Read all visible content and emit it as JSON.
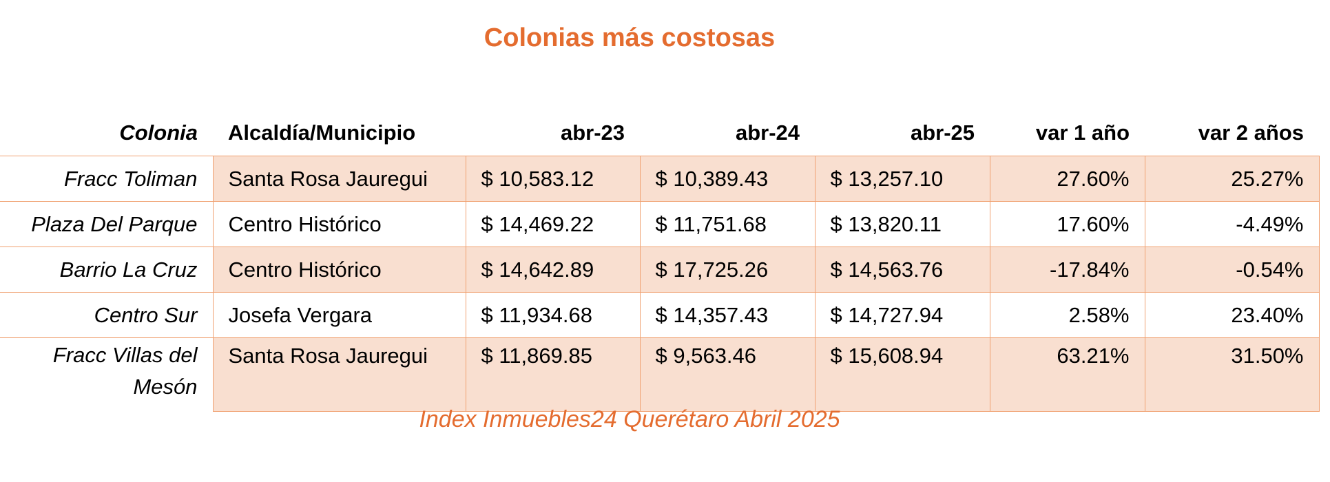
{
  "title": "Colonias más costosas",
  "table": {
    "header": [
      "Colonia",
      "Alcaldía/Municipio",
      "abr-23",
      "abr-24",
      "abr-25",
      "var 1 año",
      "var 2 años"
    ],
    "rows": [
      [
        "Fracc Toliman",
        "Santa Rosa Jauregui",
        "$ 10,583.12",
        "$ 10,389.43",
        "$ 13,257.10",
        "27.60%",
        "25.27%"
      ],
      [
        "Plaza Del Parque",
        "Centro Histórico",
        "$ 14,469.22",
        "$ 11,751.68",
        "$ 13,820.11",
        "17.60%",
        "-4.49%"
      ],
      [
        "Barrio La Cruz",
        "Centro Histórico",
        "$ 14,642.89",
        "$ 17,725.26",
        "$ 14,563.76",
        "-17.84%",
        "-0.54%"
      ],
      [
        "Centro Sur",
        "Josefa Vergara",
        "$ 11,934.68",
        "$ 14,357.43",
        "$ 14,727.94",
        "2.58%",
        "23.40%"
      ],
      [
        "Fracc Villas del Mesón",
        "Santa Rosa Jauregui",
        "$ 11,869.85",
        "$ 9,563.46",
        "$ 15,608.94",
        "63.21%",
        "31.50%"
      ]
    ]
  },
  "footer": "Index Inmuebles24 Querétaro Abril 2025"
}
